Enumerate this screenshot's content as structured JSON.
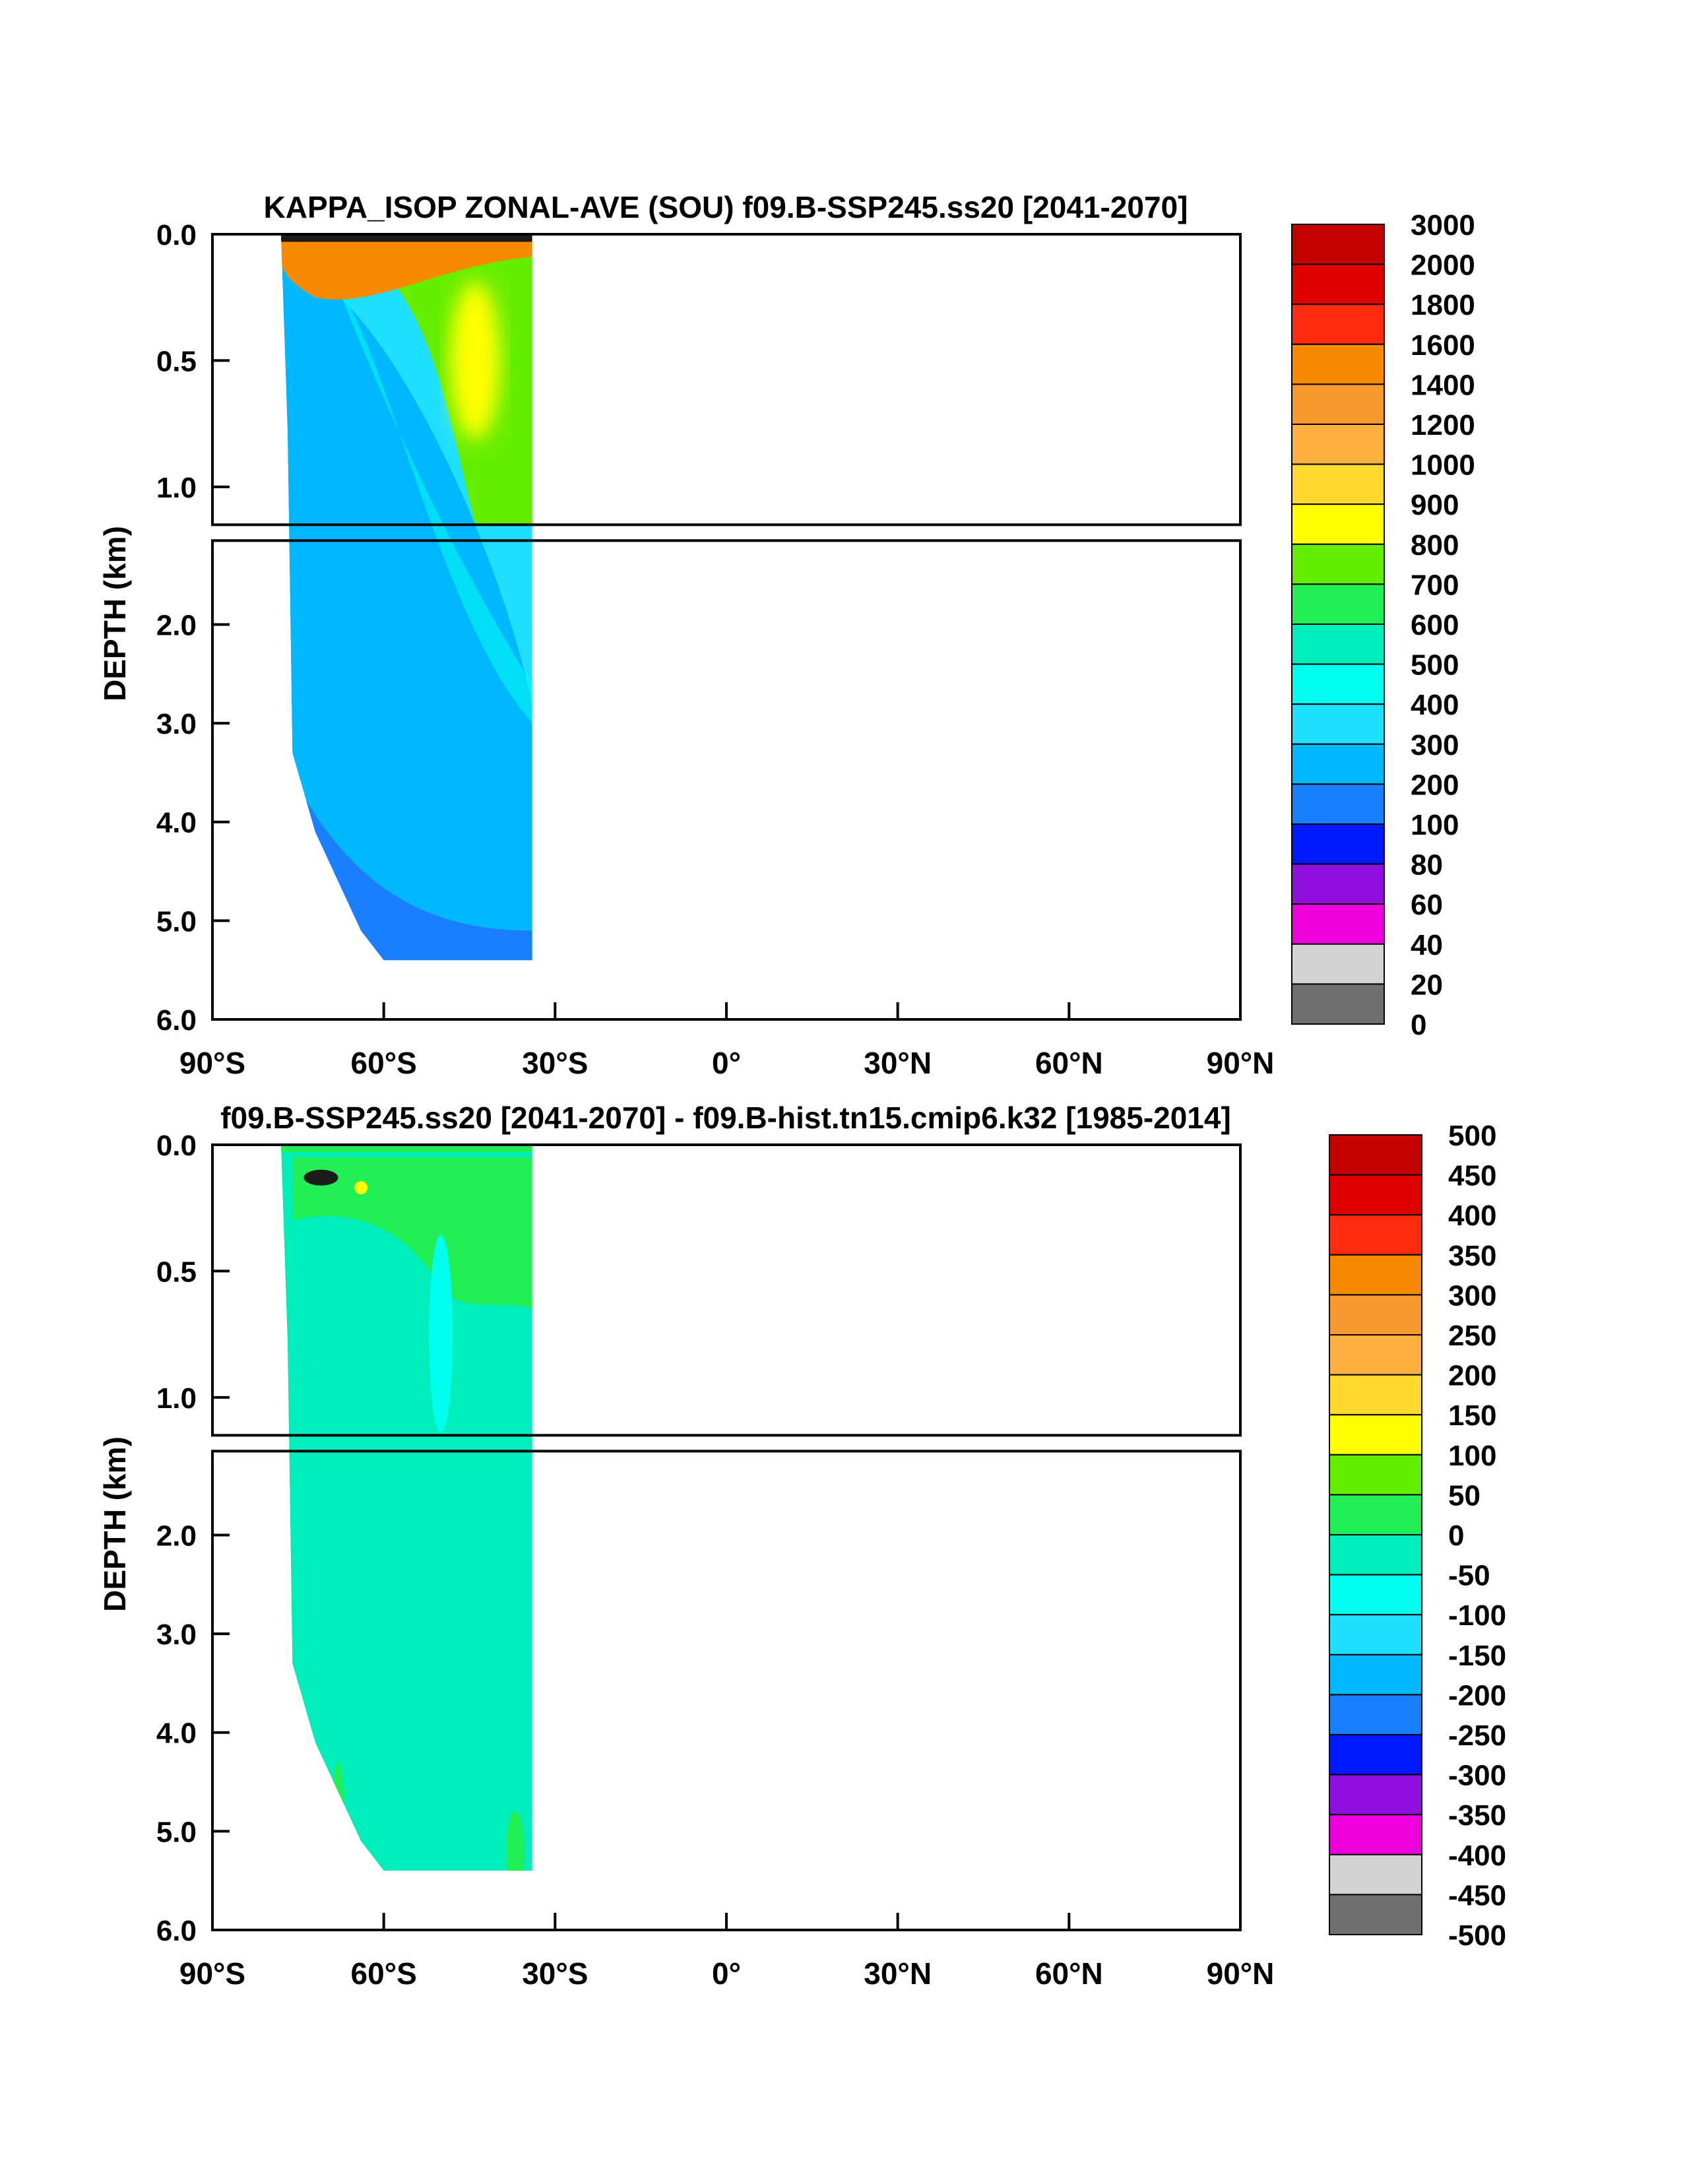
{
  "chart_data": [
    {
      "type": "heatmap",
      "title": "KAPPA_ISOP ZONAL-AVE (SOU) f09.B-SSP245.ss20 [2041-2070]",
      "ylabel": "DEPTH (km)",
      "x_ticks": [
        "90°S",
        "60°S",
        "30°S",
        "0°",
        "30°N",
        "60°N",
        "90°N"
      ],
      "y_ticks_upper": [
        "0.0",
        "0.5",
        "1.0"
      ],
      "y_ticks_lower": [
        "2.0",
        "3.0",
        "4.0",
        "5.0",
        "6.0"
      ],
      "xlim": [
        -90,
        90
      ],
      "ylim": [
        6.0,
        0.0
      ],
      "colorbar_labels": [
        "3000",
        "2000",
        "1800",
        "1600",
        "1400",
        "1200",
        "1000",
        "900",
        "800",
        "700",
        "600",
        "500",
        "400",
        "300",
        "200",
        "100",
        "80",
        "60",
        "40",
        "20",
        "0"
      ],
      "colorbar_colors": [
        "#c40000",
        "#e00000",
        "#ff2a10",
        "#f88a00",
        "#f99a30",
        "#fbb040",
        "#ffd830",
        "#ffff00",
        "#66ee00",
        "#22ee55",
        "#00eebb",
        "#00ffee",
        "#20e0ff",
        "#00b8ff",
        "#1a7fff",
        "#0018ff",
        "#9010e0",
        "#ee00dd",
        "#d3d3d3",
        "#707070"
      ],
      "ocean_extent_lat": [
        -78,
        -34
      ],
      "ocean_bottom_km": [
        [
          -76,
          3.3
        ],
        [
          -72,
          4.1
        ],
        [
          -68,
          4.6
        ],
        [
          -64,
          5.1
        ],
        [
          -60,
          5.4
        ],
        [
          -40,
          5.4
        ],
        [
          -34,
          5.4
        ]
      ],
      "fields": [
        {
          "name": "background",
          "value_range": "200-300",
          "color_ref": 13
        },
        {
          "name": "intermediate",
          "value_range": "300-400",
          "color_ref": 12
        },
        {
          "name": "core",
          "value_range": "500-800",
          "color_ref": 8
        },
        {
          "name": "surface_max",
          "value_range": "1000-1400",
          "color_ref": 3
        }
      ]
    },
    {
      "type": "heatmap",
      "title": "f09.B-SSP245.ss20 [2041-2070] - f09.B-hist.tn15.cmip6.k32 [1985-2014]",
      "ylabel": "DEPTH (km)",
      "x_ticks": [
        "90°S",
        "60°S",
        "30°S",
        "0°",
        "30°N",
        "60°N",
        "90°N"
      ],
      "y_ticks_upper": [
        "0.0",
        "0.5",
        "1.0"
      ],
      "y_ticks_lower": [
        "2.0",
        "3.0",
        "4.0",
        "5.0",
        "6.0"
      ],
      "xlim": [
        -90,
        90
      ],
      "ylim": [
        6.0,
        0.0
      ],
      "colorbar_labels": [
        "500",
        "450",
        "400",
        "350",
        "300",
        "250",
        "200",
        "150",
        "100",
        "50",
        "0",
        "-50",
        "-100",
        "-150",
        "-200",
        "-250",
        "-300",
        "-350",
        "-400",
        "-450",
        "-500"
      ],
      "colorbar_colors": [
        "#c40000",
        "#e00000",
        "#ff2a10",
        "#f88a00",
        "#f99a30",
        "#fbb040",
        "#ffd830",
        "#ffff00",
        "#66ee00",
        "#22ee55",
        "#00eebb",
        "#00ffee",
        "#20e0ff",
        "#00b8ff",
        "#1a7fff",
        "#0018ff",
        "#9010e0",
        "#ee00dd",
        "#d3d3d3",
        "#707070"
      ],
      "ocean_extent_lat": [
        -78,
        -34
      ],
      "ocean_bottom_km": [
        [
          -76,
          3.3
        ],
        [
          -72,
          4.1
        ],
        [
          -68,
          4.6
        ],
        [
          -64,
          5.1
        ],
        [
          -60,
          5.4
        ],
        [
          -40,
          5.4
        ],
        [
          -34,
          5.4
        ]
      ],
      "fields": [
        {
          "name": "background",
          "value_range": "-50-0",
          "color_ref": 10
        },
        {
          "name": "positive_anomaly",
          "value_range": "0-100",
          "color_ref": 9
        }
      ]
    }
  ]
}
